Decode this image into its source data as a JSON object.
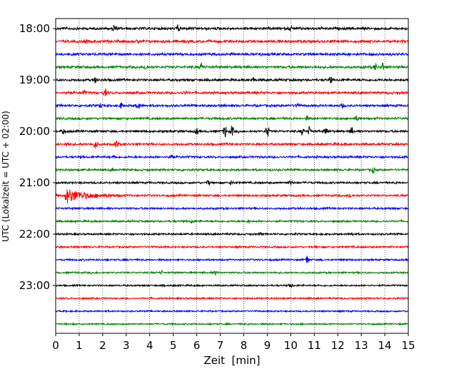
{
  "chart_data": {
    "type": "line",
    "title": "",
    "xlabel": "Zeit  [min]",
    "ylabel": "UTC (Lokalzeit = UTC + 02:00)",
    "xlim": [
      0,
      15
    ],
    "x_ticks": [
      "0",
      "1",
      "2",
      "3",
      "4",
      "5",
      "6",
      "7",
      "8",
      "9",
      "10",
      "11",
      "12",
      "13",
      "14",
      "15"
    ],
    "y_ticks": [
      "18:00",
      "19:00",
      "20:00",
      "21:00",
      "22:00",
      "23:00"
    ],
    "trace_interval_min": 15,
    "trace_count": 24,
    "trace_colors": [
      "#000000",
      "#ff0000",
      "#0000ff",
      "#008000"
    ],
    "grid": "vertical-dotted",
    "events": [
      {
        "trace": 0,
        "min": 2.5,
        "amp": 6
      },
      {
        "trace": 0,
        "min": 5.2,
        "amp": 5
      },
      {
        "trace": 0,
        "min": 10.0,
        "amp": 3
      },
      {
        "trace": 1,
        "min": 1.3,
        "amp": 2
      },
      {
        "trace": 1,
        "min": 3.5,
        "amp": 2
      },
      {
        "trace": 1,
        "min": 9.5,
        "amp": 2
      },
      {
        "trace": 2,
        "min": 8.7,
        "amp": 2
      },
      {
        "trace": 3,
        "min": 3.8,
        "amp": 3
      },
      {
        "trace": 3,
        "min": 6.2,
        "amp": 6
      },
      {
        "trace": 3,
        "min": 13.6,
        "amp": 5
      },
      {
        "trace": 3,
        "min": 13.9,
        "amp": 6
      },
      {
        "trace": 4,
        "min": 1.7,
        "amp": 4
      },
      {
        "trace": 4,
        "min": 8.4,
        "amp": 3
      },
      {
        "trace": 4,
        "min": 11.7,
        "amp": 4
      },
      {
        "trace": 5,
        "min": 0.5,
        "amp": 3
      },
      {
        "trace": 5,
        "min": 1.2,
        "amp": 3
      },
      {
        "trace": 5,
        "min": 2.1,
        "amp": 5
      },
      {
        "trace": 5,
        "min": 5.5,
        "amp": 2
      },
      {
        "trace": 6,
        "min": 1.9,
        "amp": 3
      },
      {
        "trace": 6,
        "min": 2.8,
        "amp": 4
      },
      {
        "trace": 6,
        "min": 3.5,
        "amp": 6
      },
      {
        "trace": 6,
        "min": 10.3,
        "amp": 4
      },
      {
        "trace": 6,
        "min": 12.2,
        "amp": 3
      },
      {
        "trace": 7,
        "min": 10.7,
        "amp": 3
      },
      {
        "trace": 7,
        "min": 12.8,
        "amp": 3
      },
      {
        "trace": 8,
        "min": 0.3,
        "amp": 4
      },
      {
        "trace": 8,
        "min": 6.0,
        "amp": 4
      },
      {
        "trace": 8,
        "min": 7.2,
        "amp": 9
      },
      {
        "trace": 8,
        "min": 7.5,
        "amp": 7
      },
      {
        "trace": 8,
        "min": 9.0,
        "amp": 9
      },
      {
        "trace": 8,
        "min": 10.5,
        "amp": 5
      },
      {
        "trace": 8,
        "min": 10.8,
        "amp": 6
      },
      {
        "trace": 8,
        "min": 11.5,
        "amp": 5
      },
      {
        "trace": 8,
        "min": 12.6,
        "amp": 5
      },
      {
        "trace": 9,
        "min": 1.7,
        "amp": 7
      },
      {
        "trace": 9,
        "min": 2.6,
        "amp": 6
      },
      {
        "trace": 9,
        "min": 0.5,
        "amp": 2
      },
      {
        "trace": 10,
        "min": 2.5,
        "amp": 3
      },
      {
        "trace": 10,
        "min": 4.9,
        "amp": 6
      },
      {
        "trace": 11,
        "min": 13.5,
        "amp": 4
      },
      {
        "trace": 11,
        "min": 2.4,
        "amp": 2
      },
      {
        "trace": 12,
        "min": 6.5,
        "amp": 3
      },
      {
        "trace": 12,
        "min": 7.5,
        "amp": 3
      },
      {
        "trace": 12,
        "min": 10.0,
        "amp": 3
      },
      {
        "trace": 13,
        "min": 0.4,
        "amp": 11,
        "decay": 1.6
      },
      {
        "trace": 13,
        "min": 12.5,
        "amp": 3
      },
      {
        "trace": 15,
        "min": 5.8,
        "amp": 3
      },
      {
        "trace": 15,
        "min": 8.2,
        "amp": 2
      },
      {
        "trace": 16,
        "min": 8.7,
        "amp": 2
      },
      {
        "trace": 16,
        "min": 12.6,
        "amp": 2
      },
      {
        "trace": 18,
        "min": 10.7,
        "amp": 6
      },
      {
        "trace": 19,
        "min": 6.8,
        "amp": 3
      },
      {
        "trace": 19,
        "min": 4.5,
        "amp": 2
      },
      {
        "trace": 20,
        "min": 10.0,
        "amp": 4
      }
    ]
  }
}
